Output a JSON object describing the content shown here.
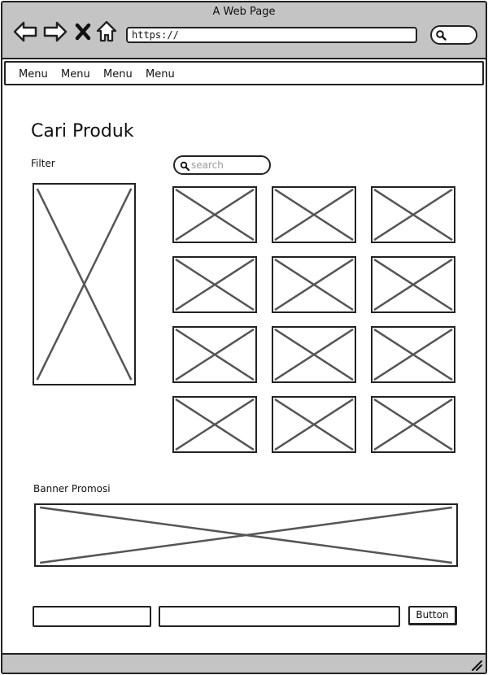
{
  "window": {
    "title": "A Web Page"
  },
  "browser": {
    "url": "https://",
    "icons": [
      "back-arrow-icon",
      "forward-arrow-icon",
      "close-x-icon",
      "home-icon",
      "search-icon"
    ]
  },
  "menu": {
    "items": [
      "Menu",
      "Menu",
      "Menu",
      "Menu"
    ]
  },
  "main": {
    "title": "Cari Produk",
    "filter_label": "Filter",
    "search": {
      "placeholder": "search",
      "value": ""
    },
    "product_placeholders": 12
  },
  "banner": {
    "label": "Banner Promosi"
  },
  "footer": {
    "button_label": "Button",
    "field1_value": "",
    "field2_value": ""
  },
  "colors": {
    "chrome": "#c4c4c4",
    "stroke": "#222222",
    "placeholder_x": "#555555"
  }
}
